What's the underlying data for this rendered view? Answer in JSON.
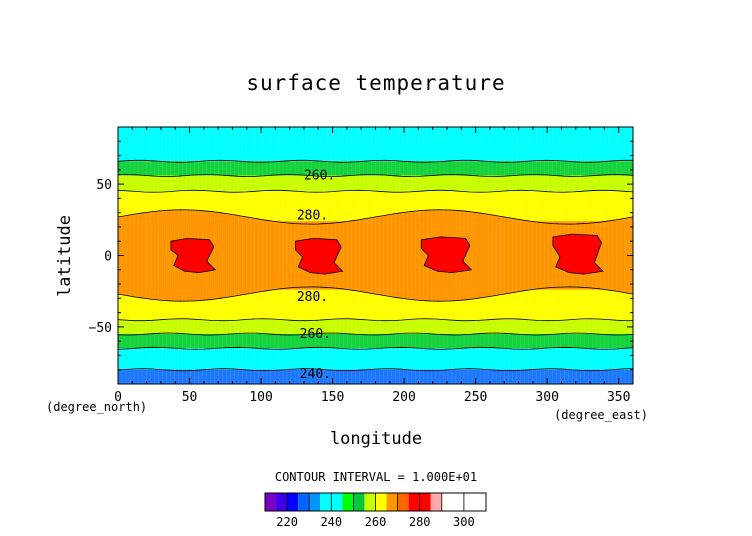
{
  "chart_data": {
    "type": "heatmap",
    "title": "surface temperature",
    "xlabel": "longitude",
    "ylabel": "latitude",
    "x_unit": "(degree_east)",
    "y_unit": "(degree_north)",
    "xlim": [
      0,
      360
    ],
    "ylim": [
      -90,
      90
    ],
    "x_ticks": [
      "0",
      "50",
      "100",
      "150",
      "200",
      "250",
      "300",
      "350"
    ],
    "x_tick_values": [
      0,
      50,
      100,
      150,
      200,
      250,
      300,
      350
    ],
    "y_ticks": [
      "50",
      "0",
      "−50"
    ],
    "y_tick_values": [
      50,
      0,
      -50
    ],
    "contour_interval_text": "CONTOUR INTERVAL = 1.000E+01",
    "contour_labels": [
      {
        "text": "260.",
        "lon": 130,
        "lat": 56
      },
      {
        "text": "280.",
        "lon": 125,
        "lat": 28
      },
      {
        "text": "280.",
        "lon": 125,
        "lat": -29
      },
      {
        "text": "260.",
        "lon": 127,
        "lat": -55
      },
      {
        "text": "240.",
        "lon": 127,
        "lat": -83
      }
    ],
    "bands": [
      {
        "lat_min": 66,
        "lat_max": 90,
        "level": 245
      },
      {
        "lat_min": 56,
        "lat_max": 66,
        "level": 255
      },
      {
        "lat_min": 45,
        "lat_max": 56,
        "level": 265
      },
      {
        "lat_min": 24,
        "lat_max": 45,
        "level": 275
      },
      {
        "lat_min": -24,
        "lat_max": 24,
        "level": 285
      },
      {
        "lat_min": -45,
        "lat_max": -24,
        "level": 275
      },
      {
        "lat_min": -55,
        "lat_max": -45,
        "level": 265
      },
      {
        "lat_min": -65,
        "lat_max": -55,
        "level": 255
      },
      {
        "lat_min": -80,
        "lat_max": -65,
        "level": 245
      },
      {
        "lat_min": -90,
        "lat_max": -80,
        "level": 235
      }
    ],
    "hot_spots_above_290": [
      {
        "lon_min": 37,
        "lon_max": 68,
        "lat_min": -12,
        "lat_max": 12
      },
      {
        "lon_min": 124,
        "lon_max": 157,
        "lat_min": -13,
        "lat_max": 12
      },
      {
        "lon_min": 212,
        "lon_max": 247,
        "lat_min": -12,
        "lat_max": 13
      },
      {
        "lon_min": 304,
        "lon_max": 339,
        "lat_min": -13,
        "lat_max": 15
      }
    ],
    "colorbar": {
      "tick_labels": [
        "220",
        "240",
        "260",
        "280",
        "300"
      ],
      "tick_values": [
        220,
        240,
        260,
        280,
        300
      ],
      "levels": [
        210,
        215,
        220,
        225,
        230,
        235,
        240,
        245,
        250,
        255,
        260,
        265,
        270,
        275,
        280,
        285,
        290,
        295,
        300,
        305,
        310
      ],
      "colors": [
        "#7a00c8",
        "#3c00e6",
        "#0000ff",
        "#0064ff",
        "#0096ff",
        "#00ffff",
        "#00ffff",
        "#00ff00",
        "#00c83c",
        "#c8ff00",
        "#ffff00",
        "#ff9600",
        "#ff6400",
        "#ff0000",
        "#ff0000",
        "#ffaaaa"
      ]
    }
  },
  "colors": {
    "c235": "#1e78ff",
    "c245": "#00ffff",
    "c255": "#14d23c",
    "c265": "#c8ff00",
    "c275": "#ffff00",
    "c285": "#ff9600",
    "c295": "#ff0000",
    "contour": "#000000",
    "frame": "#000000"
  }
}
